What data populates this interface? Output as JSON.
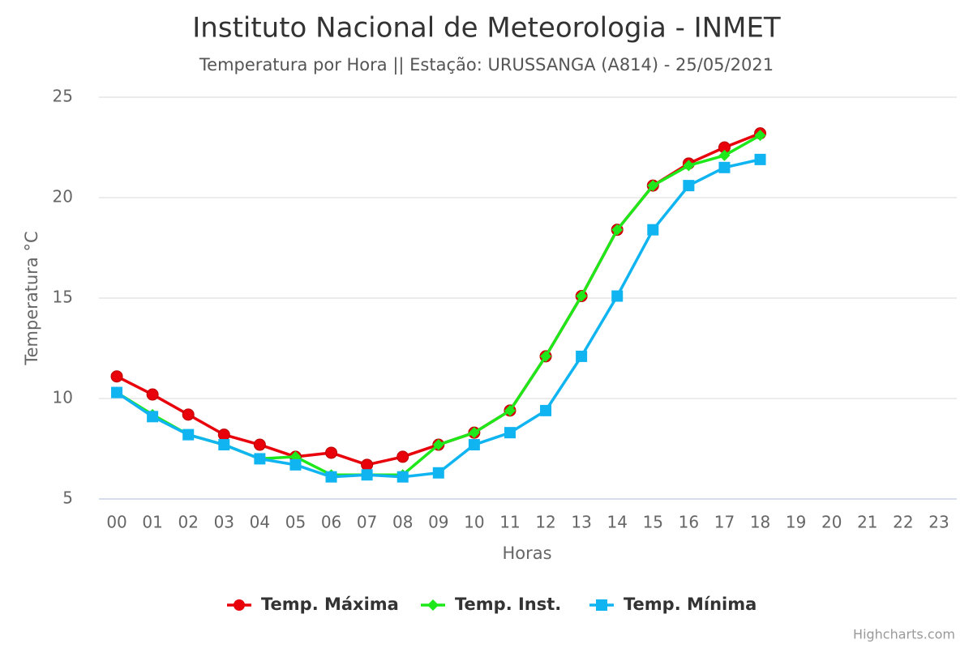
{
  "chart_data": {
    "type": "line",
    "title": "Instituto Nacional de Meteorologia - INMET",
    "subtitle": "Temperatura por Hora || Estação: URUSSANGA (A814) - 25/05/2021",
    "x_label": "Horas",
    "y_label": "Temperatura °C",
    "credits": "Highcharts.com",
    "categories": [
      "00",
      "01",
      "02",
      "03",
      "04",
      "05",
      "06",
      "07",
      "08",
      "09",
      "10",
      "11",
      "12",
      "13",
      "14",
      "15",
      "16",
      "17",
      "18",
      "19",
      "20",
      "21",
      "22",
      "23"
    ],
    "ylim": [
      5,
      25
    ],
    "yticks": [
      5,
      10,
      15,
      20,
      25
    ],
    "grid": true,
    "legend": "bottom",
    "series": [
      {
        "name": "Temp. Máxima",
        "color": "#e8000b",
        "marker": "circle",
        "values": [
          11.1,
          10.2,
          9.2,
          8.2,
          7.7,
          7.1,
          7.3,
          6.7,
          7.1,
          7.7,
          8.3,
          9.4,
          12.1,
          15.1,
          18.4,
          20.6,
          21.7,
          22.5,
          23.2,
          null,
          null,
          null,
          null,
          null
        ]
      },
      {
        "name": "Temp. Inst.",
        "color": "#1ee81a",
        "marker": "diamond",
        "values": [
          10.3,
          9.2,
          8.2,
          7.7,
          7.0,
          7.1,
          6.2,
          6.2,
          6.2,
          7.7,
          8.3,
          9.4,
          12.1,
          15.1,
          18.4,
          20.6,
          21.6,
          22.1,
          23.1,
          null,
          null,
          null,
          null,
          null
        ]
      },
      {
        "name": "Temp. Mínima",
        "color": "#10b4f0",
        "marker": "square",
        "values": [
          10.3,
          9.1,
          8.2,
          7.7,
          7.0,
          6.7,
          6.1,
          6.2,
          6.1,
          6.3,
          7.7,
          8.3,
          9.4,
          12.1,
          15.1,
          18.4,
          20.6,
          21.5,
          21.9,
          null,
          null,
          null,
          null,
          null
        ]
      }
    ]
  }
}
